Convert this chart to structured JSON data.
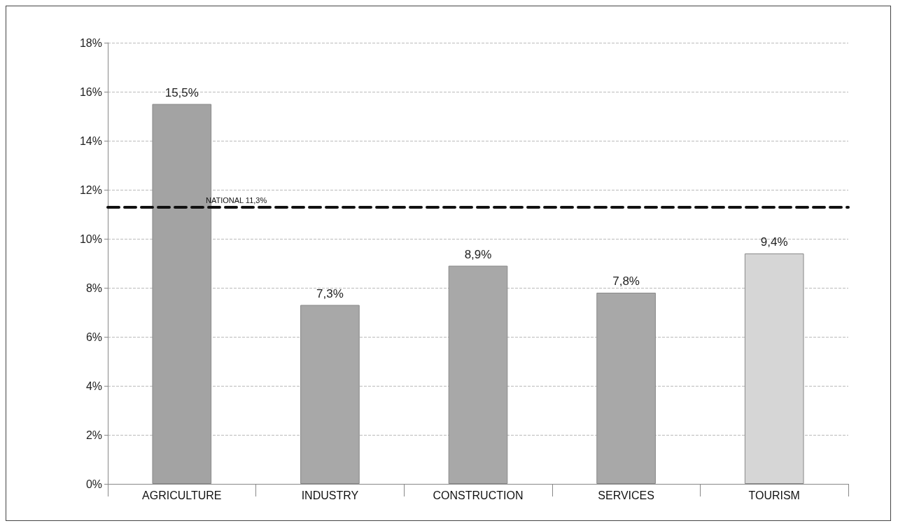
{
  "chart_data": {
    "type": "bar",
    "categories": [
      "AGRICULTURE",
      "INDUSTRY",
      "CONSTRUCTION",
      "SERVICES",
      "TOURISM"
    ],
    "values": [
      15.5,
      7.3,
      8.9,
      7.8,
      9.4
    ],
    "colors": [
      "#a3a3a3",
      "#a8a8a8",
      "#a8a8a8",
      "#a8a8a8",
      "#d6d6d6"
    ],
    "value_labels": [
      "15,5%",
      "7,3%",
      "8,9%",
      "7,8%",
      "9,4%"
    ],
    "ylim": [
      0,
      18
    ],
    "yticks": [
      {
        "value": 0,
        "label": "0%"
      },
      {
        "value": 2,
        "label": "2%"
      },
      {
        "value": 4,
        "label": "4%"
      },
      {
        "value": 6,
        "label": "6%"
      },
      {
        "value": 8,
        "label": "8%"
      },
      {
        "value": 10,
        "label": "10%"
      },
      {
        "value": 12,
        "label": "12%"
      },
      {
        "value": 14,
        "label": "14%"
      },
      {
        "value": 16,
        "label": "16%"
      },
      {
        "value": 18,
        "label": "18%"
      }
    ],
    "ref_lines": [
      {
        "axis": "y",
        "value": 11.3,
        "label": "NATIONAL 11,3%",
        "color": "#111111",
        "line_style": "dashed"
      }
    ],
    "grid": "y"
  }
}
